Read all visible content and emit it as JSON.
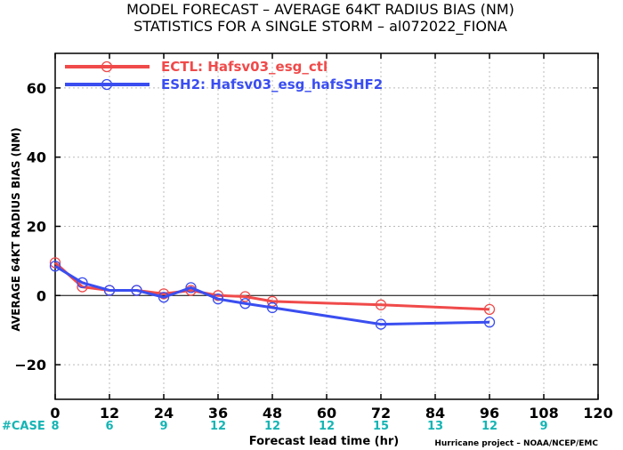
{
  "chart_data": {
    "type": "line",
    "title": "MODEL FORECAST – AVERAGE 64KT RADIUS BIAS (NM)",
    "subtitle": "STATISTICS FOR A SINGLE STORM – al072022_FIONA",
    "xlabel": "Forecast lead time (hr)",
    "ylabel": "AVERAGE 64KT RADIUS BIAS (NM)",
    "xlim": [
      0,
      120
    ],
    "ylim": [
      -30,
      70
    ],
    "xticks": [
      0,
      12,
      24,
      36,
      48,
      60,
      72,
      84,
      96,
      108,
      120
    ],
    "yticks": [
      -20,
      0,
      20,
      40,
      60
    ],
    "grid": true,
    "legend_position": "top-left",
    "series": [
      {
        "name": "ECTL: Hafsv03_esg_ctl",
        "color": "#f04a4a",
        "x": [
          0,
          6,
          12,
          18,
          24,
          30,
          36,
          42,
          48,
          72,
          96
        ],
        "y": [
          9.5,
          2.5,
          1.5,
          1.5,
          0.5,
          1.5,
          0.0,
          -0.3,
          -1.7,
          -2.7,
          -4.0
        ]
      },
      {
        "name": "ESH2: Hafsv03_esg_hafsSHF2",
        "color": "#3a4ef0",
        "x": [
          0,
          6,
          12,
          18,
          24,
          30,
          36,
          42,
          48,
          72,
          96
        ],
        "y": [
          8.5,
          3.7,
          1.5,
          1.5,
          -0.5,
          2.3,
          -1.0,
          -2.3,
          -3.5,
          -8.3,
          -7.7
        ]
      }
    ],
    "case_label": "#CASE",
    "case_counts": [
      {
        "x": 0,
        "label": "8"
      },
      {
        "x": 12,
        "label": "6"
      },
      {
        "x": 24,
        "label": "9"
      },
      {
        "x": 36,
        "label": "12"
      },
      {
        "x": 48,
        "label": "12"
      },
      {
        "x": 60,
        "label": "12"
      },
      {
        "x": 72,
        "label": "15"
      },
      {
        "x": 84,
        "label": "13"
      },
      {
        "x": 96,
        "label": "12"
      },
      {
        "x": 108,
        "label": "9"
      }
    ],
    "credit": "Hurricane project – NOAA/NCEP/EMC"
  }
}
